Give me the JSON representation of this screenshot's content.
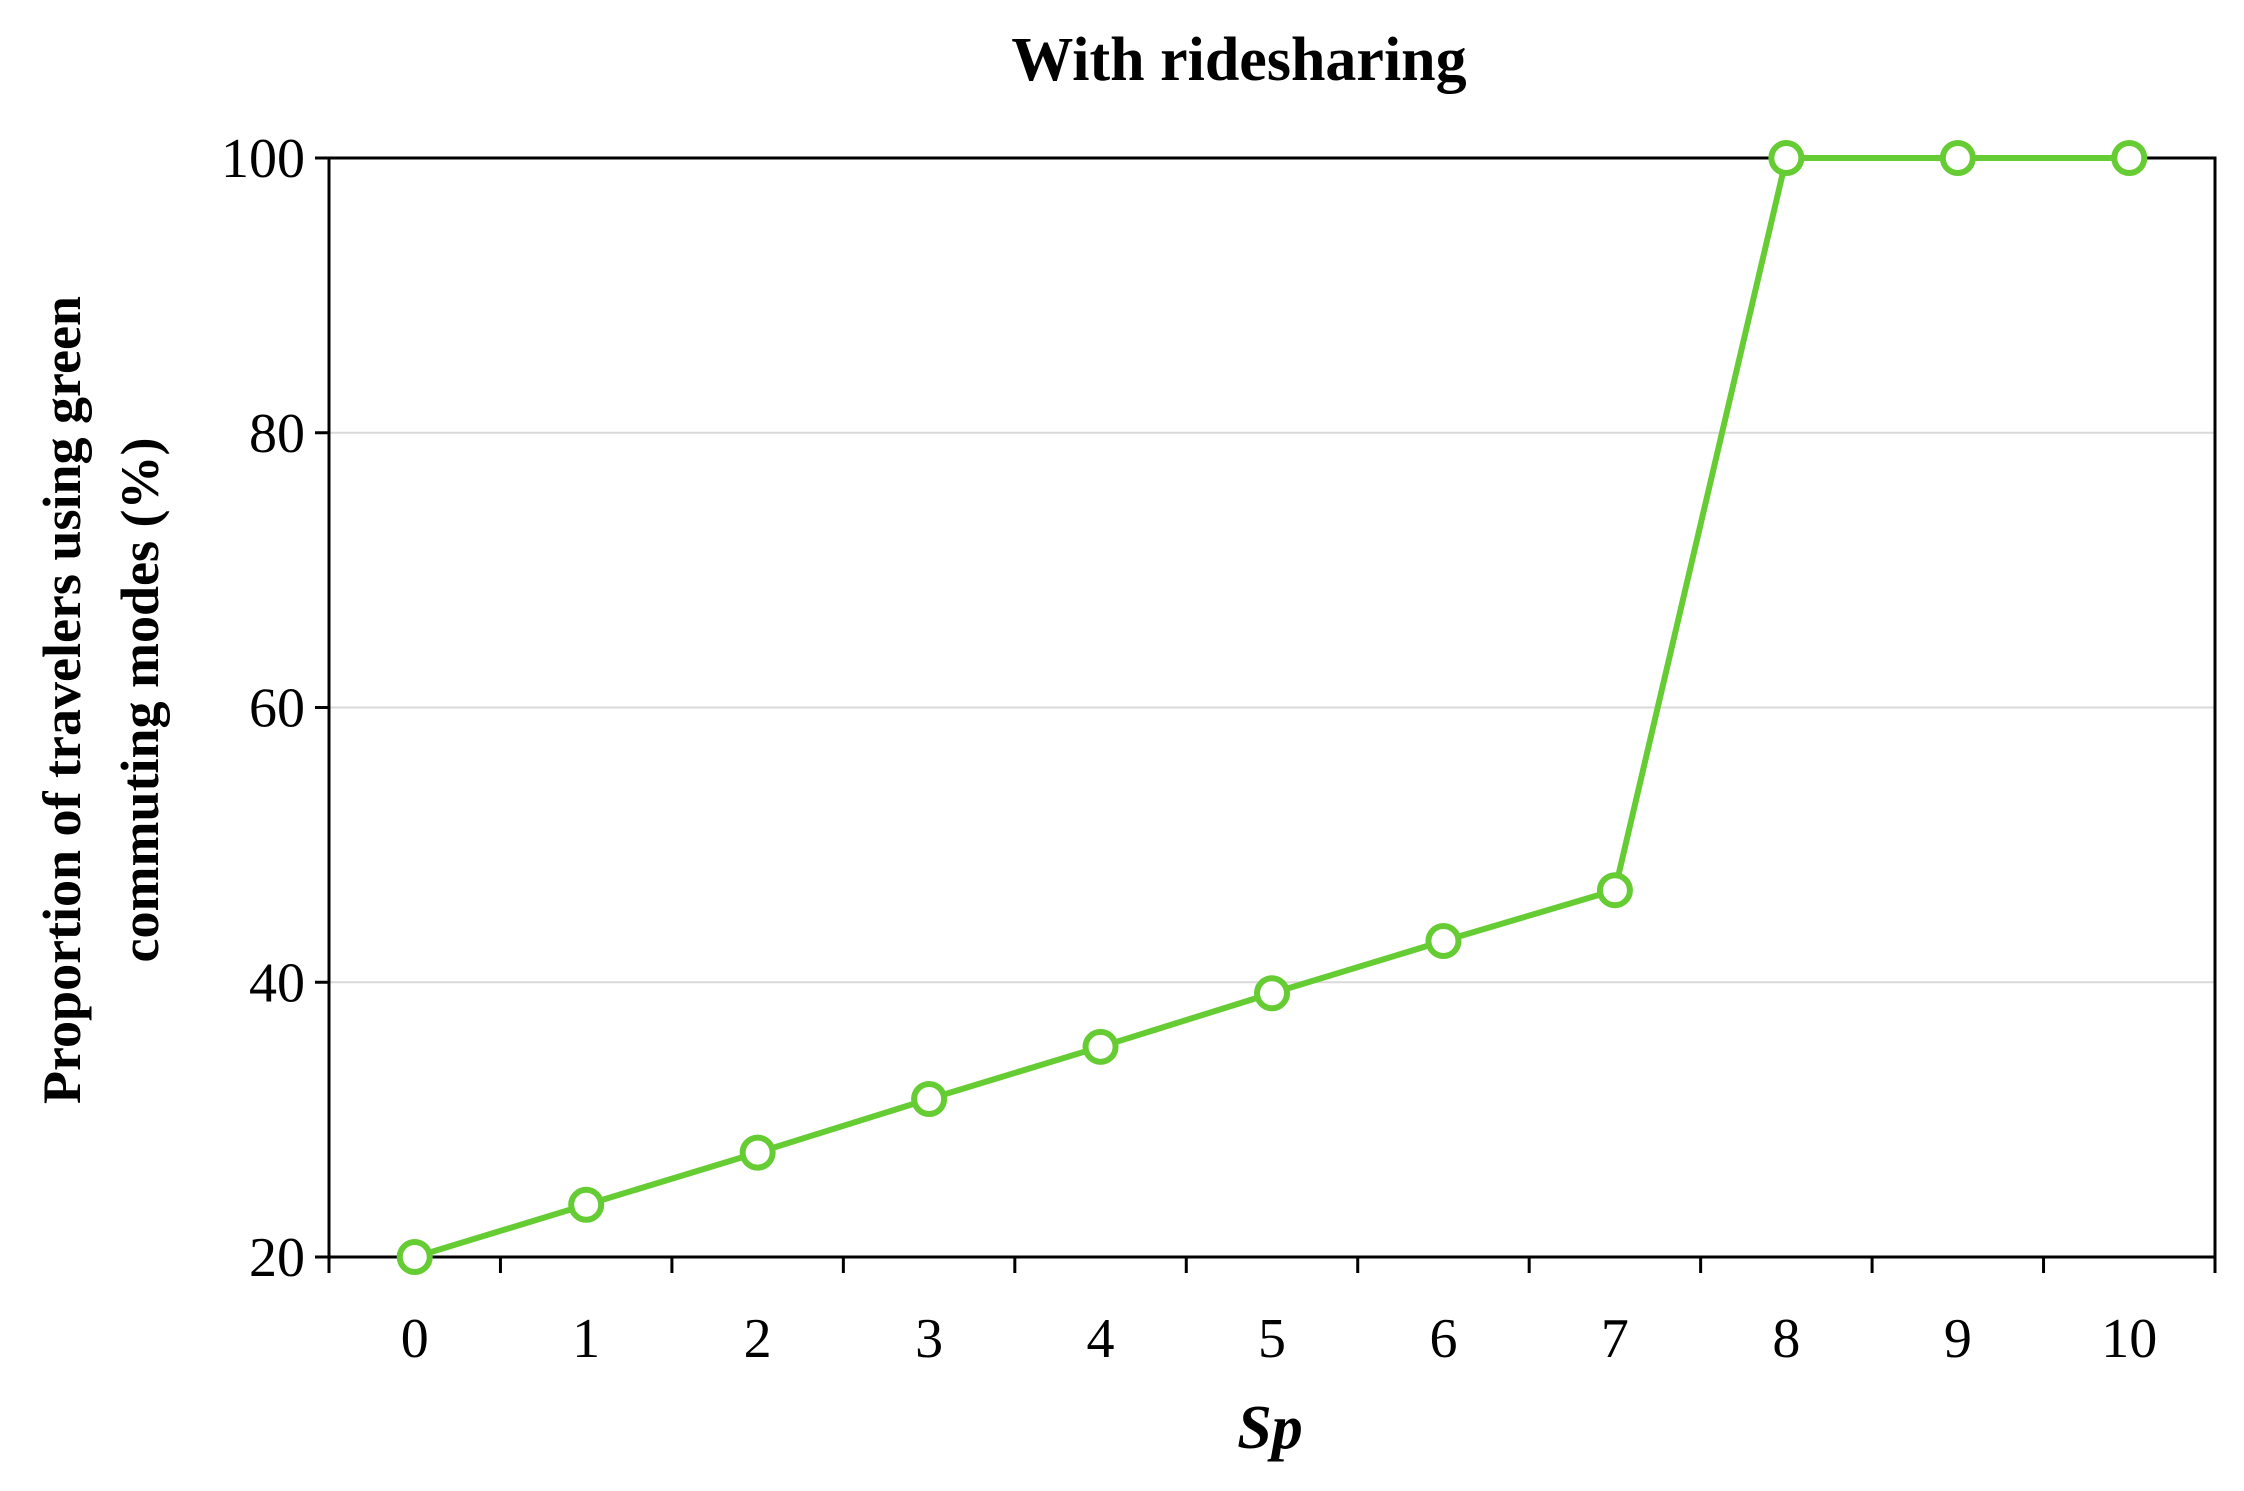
{
  "chart_data": {
    "type": "line",
    "title": "With ridesharing",
    "xlabel": "Sp",
    "ylabel_lines": [
      "Proportion of travelers using green",
      "commuting modes (%)"
    ],
    "x": [
      0,
      1,
      2,
      3,
      4,
      5,
      6,
      7,
      8,
      9,
      10
    ],
    "x_tick_labels": [
      "0",
      "1",
      "2",
      "3",
      "4",
      "5",
      "6",
      "7",
      "8",
      "9",
      "10"
    ],
    "series": [
      {
        "values": [
          20,
          23.8,
          27.6,
          31.5,
          35.3,
          39.2,
          43.0,
          46.7,
          100,
          100,
          100
        ],
        "color": "#66cc33",
        "marker": "open-circle"
      }
    ],
    "ylim": [
      20,
      100
    ],
    "y_ticks": [
      20,
      40,
      60,
      80,
      100
    ],
    "y_tick_labels": [
      "20",
      "40",
      "60",
      "80",
      "100"
    ],
    "grid": "horizontal",
    "legend": "none"
  }
}
